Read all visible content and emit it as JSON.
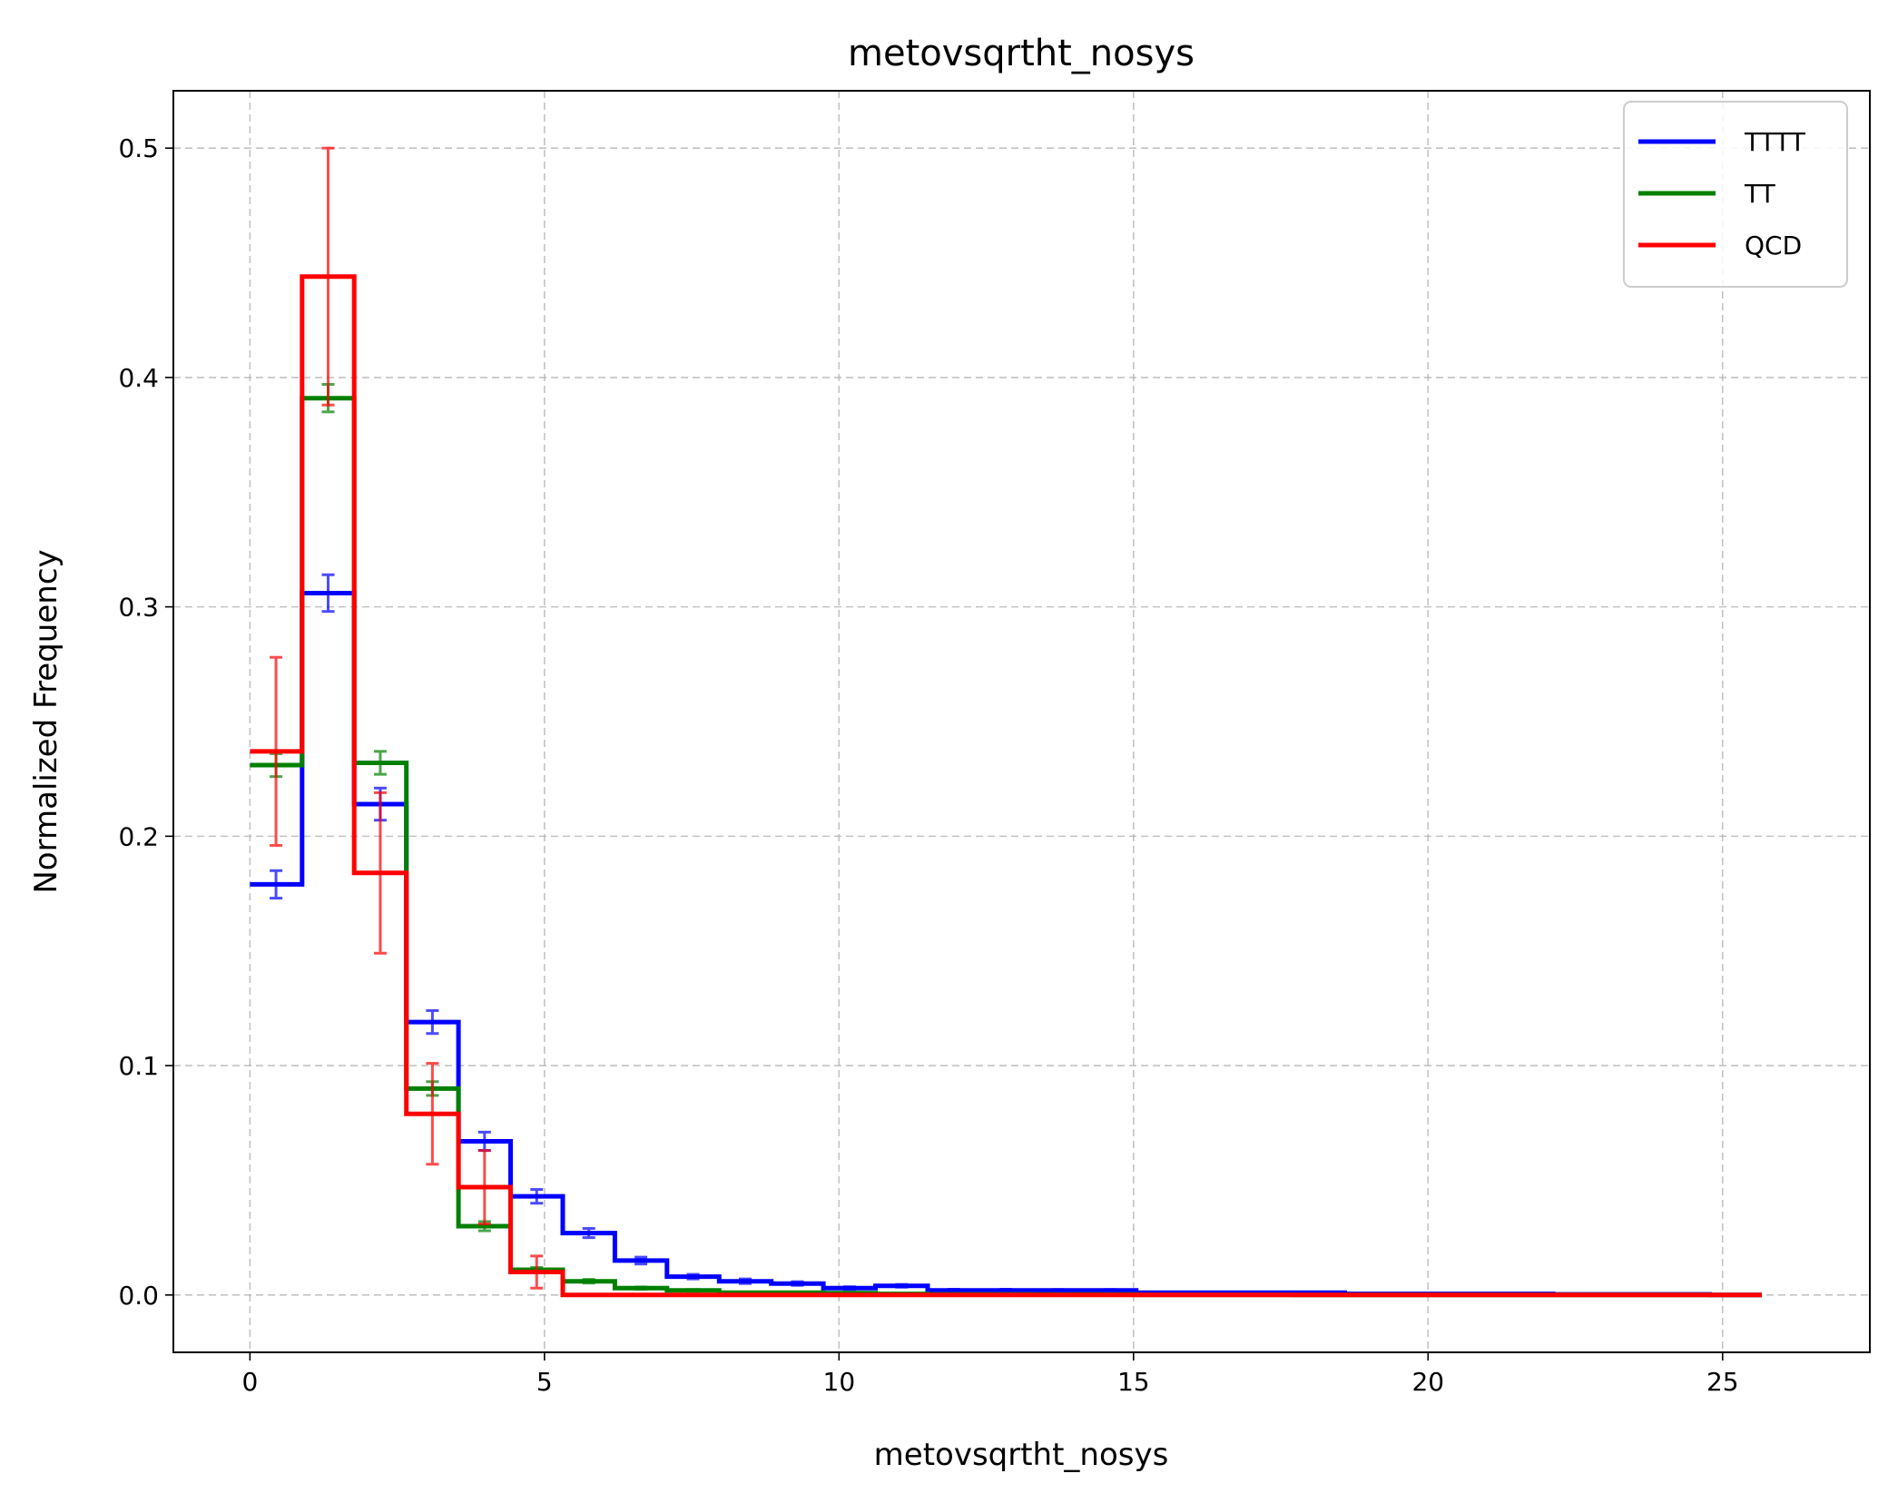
{
  "chart_data": {
    "type": "line",
    "title": "metovsqrtht_nosys",
    "xlabel": "metovsqrtht_nosys",
    "ylabel": "Normalized Frequency",
    "xlim": [
      -1.3,
      27.5
    ],
    "ylim": [
      -0.025,
      0.525
    ],
    "xticks": [
      0,
      5,
      10,
      15,
      20,
      25
    ],
    "xtick_labels": [
      "0",
      "5",
      "10",
      "15",
      "20",
      "25"
    ],
    "yticks": [
      0.0,
      0.1,
      0.2,
      0.3,
      0.4,
      0.5
    ],
    "ytick_labels": [
      "0.0",
      "0.1",
      "0.2",
      "0.3",
      "0.4",
      "0.5"
    ],
    "grid": true,
    "legend_position": "top-right",
    "bin_edges": [
      0,
      0.885,
      1.77,
      2.655,
      3.54,
      4.425,
      5.31,
      6.195,
      7.08,
      7.965,
      8.85,
      9.735,
      10.62,
      11.505,
      12.39,
      13.275,
      14.16,
      15.045,
      15.93,
      16.815,
      17.7,
      18.585,
      19.47,
      20.355,
      21.24,
      22.125,
      23.01,
      23.895,
      24.78,
      25.665
    ],
    "series": [
      {
        "name": "TTTT",
        "color": "#0000ff",
        "values": [
          0.179,
          0.306,
          0.214,
          0.119,
          0.067,
          0.043,
          0.027,
          0.015,
          0.008,
          0.006,
          0.005,
          0.003,
          0.004,
          0.002,
          0.002,
          0.002,
          0.002,
          0.001,
          0.001,
          0.001,
          0.001,
          0.0005,
          0.0005,
          0.0005,
          0.0005,
          0.0003,
          0.0003,
          0.0003,
          0.0
        ],
        "errors": [
          0.006,
          0.008,
          0.007,
          0.005,
          0.004,
          0.003,
          0.002,
          0.0015,
          0.001,
          0.001,
          0.0008,
          0.0006,
          0.0006,
          0.0005,
          0.0005,
          0.0004,
          0.0004,
          0.0003,
          0.0003,
          0.0003,
          0.0003,
          0.0002,
          0.0002,
          0.0002,
          0.0002,
          0.0002,
          0.0002,
          0.0002,
          0.0
        ]
      },
      {
        "name": "TT",
        "color": "#008000",
        "values": [
          0.231,
          0.391,
          0.232,
          0.09,
          0.03,
          0.011,
          0.006,
          0.003,
          0.002,
          0.001,
          0.001,
          0.0008,
          0.0005,
          0.0003,
          0.0003,
          0.0002,
          0.0002,
          0.0001,
          0.0001,
          0.0001,
          0.0,
          0.0,
          0.0,
          0.0,
          0.0,
          0.0,
          0.0,
          0.0,
          0.0
        ],
        "errors": [
          0.005,
          0.006,
          0.005,
          0.003,
          0.002,
          0.001,
          0.0008,
          0.0005,
          0.0004,
          0.0003,
          0.0003,
          0.0002,
          0.0002,
          0.0001,
          0.0001,
          0.0001,
          0.0001,
          0.0,
          0.0,
          0.0,
          0.0,
          0.0,
          0.0,
          0.0,
          0.0,
          0.0,
          0.0,
          0.0,
          0.0
        ]
      },
      {
        "name": "QCD",
        "color": "#ff0000",
        "values": [
          0.237,
          0.444,
          0.184,
          0.079,
          0.047,
          0.01,
          0.0,
          0.0,
          0.0,
          0.0,
          0.0,
          0.0,
          0.0,
          0.0,
          0.0,
          0.0,
          0.0,
          0.0,
          0.0,
          0.0,
          0.0,
          0.0,
          0.0,
          0.0,
          0.0,
          0.0,
          0.0,
          0.0,
          0.0
        ],
        "errors": [
          0.041,
          0.056,
          0.035,
          0.022,
          0.016,
          0.007,
          0.0,
          0.0,
          0.0,
          0.0,
          0.0,
          0.0,
          0.0,
          0.0,
          0.0,
          0.0,
          0.0,
          0.0,
          0.0,
          0.0,
          0.0,
          0.0,
          0.0,
          0.0,
          0.0,
          0.0,
          0.0,
          0.0,
          0.0
        ]
      }
    ]
  }
}
